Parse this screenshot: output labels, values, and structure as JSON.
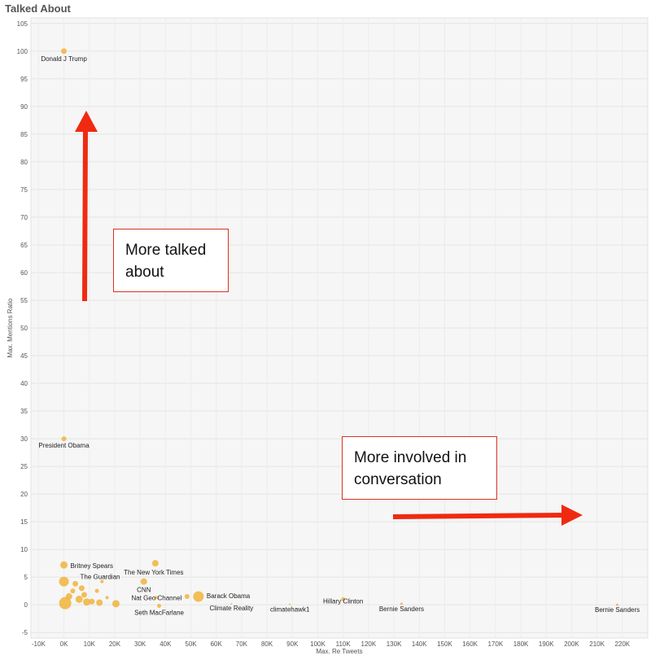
{
  "title": "Talked About",
  "colors": {
    "point": "#f0b43c",
    "point_dark": "#e8a040",
    "arrow": "#f02a10",
    "plot_bg": "#f6f6f6"
  },
  "annotations": [
    {
      "text": "More talked about"
    },
    {
      "text": "More involved in conversation"
    }
  ],
  "chart_data": {
    "type": "scatter",
    "title": "Talked About",
    "xlabel": "Max. Re Tweets",
    "ylabel": "Max. Mentions Ratio",
    "xlim": [
      -13000,
      230000
    ],
    "ylim": [
      -6,
      106
    ],
    "x_ticks": [
      "-10K",
      "0K",
      "10K",
      "20K",
      "30K",
      "40K",
      "50K",
      "60K",
      "70K",
      "80K",
      "90K",
      "100K",
      "110K",
      "120K",
      "130K",
      "140K",
      "150K",
      "160K",
      "170K",
      "180K",
      "190K",
      "200K",
      "210K",
      "220K"
    ],
    "x_tick_values": [
      -10000,
      0,
      10000,
      20000,
      30000,
      40000,
      50000,
      60000,
      70000,
      80000,
      90000,
      100000,
      110000,
      120000,
      130000,
      140000,
      150000,
      160000,
      170000,
      180000,
      190000,
      200000,
      210000,
      220000
    ],
    "y_ticks": [
      -5,
      0,
      5,
      10,
      15,
      20,
      25,
      30,
      35,
      40,
      45,
      50,
      55,
      60,
      65,
      70,
      75,
      80,
      85,
      90,
      95,
      100,
      105
    ],
    "grid": true,
    "points": [
      {
        "label": "Donald J  Trump",
        "x": 0,
        "y": 100,
        "size": 7
      },
      {
        "label": "President Obama",
        "x": 0,
        "y": 30,
        "size": 6
      },
      {
        "label": "Britney Spears",
        "x": 0,
        "y": 7.2,
        "size": 9
      },
      {
        "label": "The Guardian",
        "x": 0,
        "y": 4.2,
        "size": 12
      },
      {
        "label": "",
        "x": 500,
        "y": 0.3,
        "size": 15
      },
      {
        "label": "",
        "x": 2000,
        "y": 1.5,
        "size": 8
      },
      {
        "label": "",
        "x": 3500,
        "y": 2.5,
        "size": 6
      },
      {
        "label": "",
        "x": 4500,
        "y": 3.8,
        "size": 7
      },
      {
        "label": "",
        "x": 6000,
        "y": 1.0,
        "size": 9
      },
      {
        "label": "",
        "x": 7000,
        "y": 3.0,
        "size": 7
      },
      {
        "label": "",
        "x": 8000,
        "y": 1.8,
        "size": 7
      },
      {
        "label": "",
        "x": 9000,
        "y": 0.5,
        "size": 9
      },
      {
        "label": "",
        "x": 11000,
        "y": 0.6,
        "size": 7
      },
      {
        "label": "",
        "x": 13000,
        "y": 2.5,
        "size": 5
      },
      {
        "label": "",
        "x": 14000,
        "y": 0.4,
        "size": 8
      },
      {
        "label": "",
        "x": 15000,
        "y": 4.2,
        "size": 4
      },
      {
        "label": "",
        "x": 20500,
        "y": 0.2,
        "size": 9
      },
      {
        "label": "",
        "x": 17000,
        "y": 1.3,
        "size": 4
      },
      {
        "label": "The New York Times",
        "x": 36000,
        "y": 7.5,
        "size": 8
      },
      {
        "label": "CNN",
        "x": 31500,
        "y": 4.2,
        "size": 8
      },
      {
        "label": "Nat Geo Channel",
        "x": 36500,
        "y": 1.3,
        "size": 4
      },
      {
        "label": "Seth MacFarlane",
        "x": 37500,
        "y": -0.2,
        "size": 5
      },
      {
        "label": "",
        "x": 48500,
        "y": 1.5,
        "size": 6
      },
      {
        "label": "Barack Obama",
        "x": 53000,
        "y": 1.5,
        "size": 13
      },
      {
        "label": "Climate Reality",
        "x": 66000,
        "y": 0.2,
        "size": 2
      },
      {
        "label": "climatehawk1",
        "x": 89000,
        "y": 0.1,
        "size": 2
      },
      {
        "label": "Hillary Clinton",
        "x": 110000,
        "y": 1.0,
        "size": 5
      },
      {
        "label": "Bernie Sanders",
        "x": 133000,
        "y": 0.2,
        "size": 3
      },
      {
        "label": "Bernie Sanders",
        "x": 218000,
        "y": 0.0,
        "size": 3
      }
    ]
  }
}
